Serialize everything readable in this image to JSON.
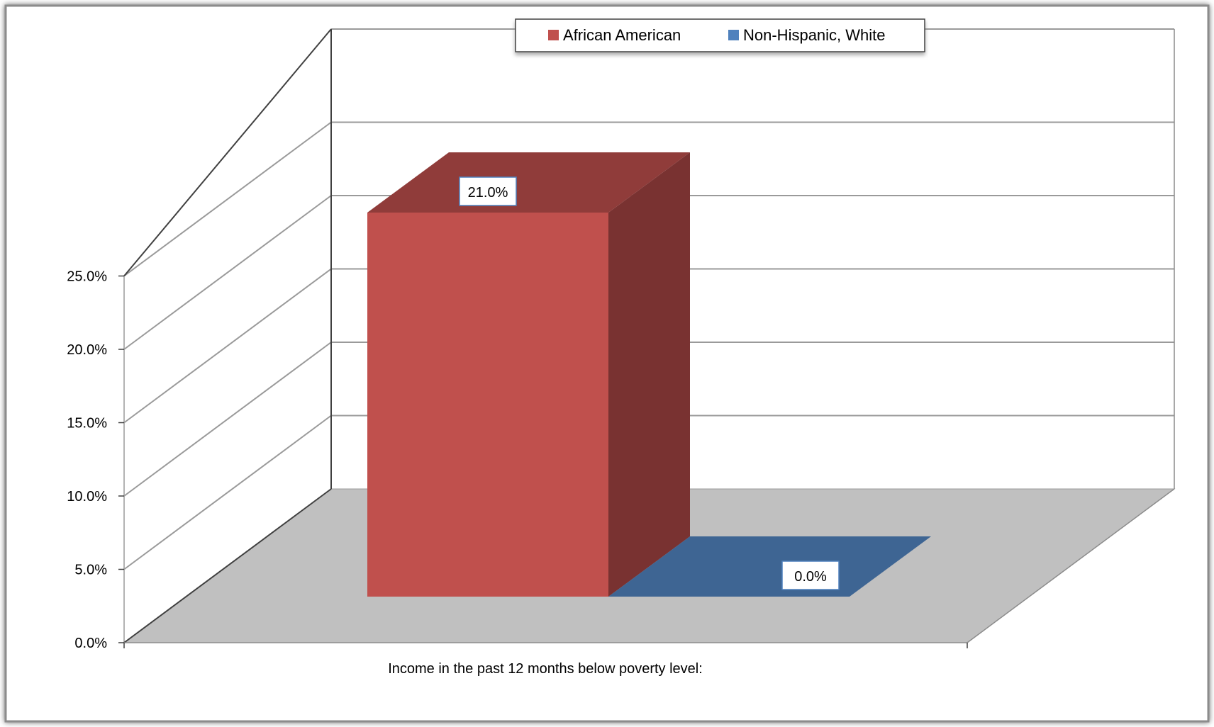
{
  "chart_data": {
    "type": "bar",
    "style": "3d-clustered-column",
    "categories": [
      "Income in the past 12 months below poverty level:"
    ],
    "series": [
      {
        "name": "African American",
        "values": [
          0.21
        ],
        "value_label": "21.0%",
        "color": "#C0504D"
      },
      {
        "name": "Non-Hispanic, White",
        "values": [
          0.0
        ],
        "value_label": "0.0%",
        "color": "#4F81BD"
      }
    ],
    "title": "",
    "xlabel": "",
    "ylabel": "",
    "ylim": [
      0,
      0.25
    ],
    "yticks": [
      {
        "value": 0.0,
        "label": "0.0%"
      },
      {
        "value": 0.05,
        "label": "5.0%"
      },
      {
        "value": 0.1,
        "label": "10.0%"
      },
      {
        "value": 0.15,
        "label": "15.0%"
      },
      {
        "value": 0.2,
        "label": "20.0%"
      },
      {
        "value": 0.25,
        "label": "25.0%"
      }
    ],
    "grid": true,
    "legend_position": "top",
    "floor_color": "#C0C0C0",
    "frame_shadow_color": "#7F7F7F"
  }
}
